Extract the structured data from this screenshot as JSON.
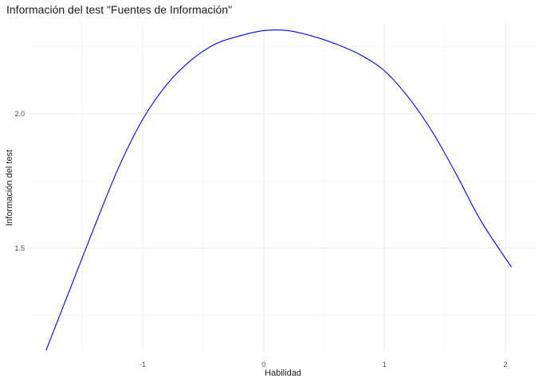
{
  "chart_data": {
    "type": "line",
    "title": "Información del test \"Fuentes de Información\"",
    "xlabel": "Habilidad",
    "ylabel": "Información del test",
    "xlim": [
      -1.95,
      2.25
    ],
    "ylim": [
      1.115,
      2.335
    ],
    "x_major_ticks": [
      -1,
      0,
      1,
      2
    ],
    "x_minor_ticks": [
      -1.5,
      -0.5,
      0.5,
      1.5
    ],
    "x_tick_labels": [
      "-1",
      "0",
      "1",
      "2"
    ],
    "y_major_ticks": [
      1.5,
      2.0
    ],
    "y_minor_ticks": [
      1.25,
      1.75,
      2.25
    ],
    "y_tick_labels": [
      "1.5",
      "2.0"
    ],
    "grid": true,
    "line_color": "#0000ff",
    "series": [
      {
        "x": [
          -1.8,
          -1.6,
          -1.4,
          -1.2,
          -1.0,
          -0.8,
          -0.6,
          -0.4,
          -0.2,
          0.0,
          0.2,
          0.4,
          0.6,
          0.8,
          1.0,
          1.2,
          1.4,
          1.6,
          1.8,
          2.05
        ],
        "values": [
          1.12,
          1.35,
          1.58,
          1.8,
          1.98,
          2.11,
          2.2,
          2.26,
          2.29,
          2.31,
          2.31,
          2.29,
          2.26,
          2.22,
          2.16,
          2.06,
          1.93,
          1.77,
          1.6,
          1.43
        ]
      }
    ]
  }
}
